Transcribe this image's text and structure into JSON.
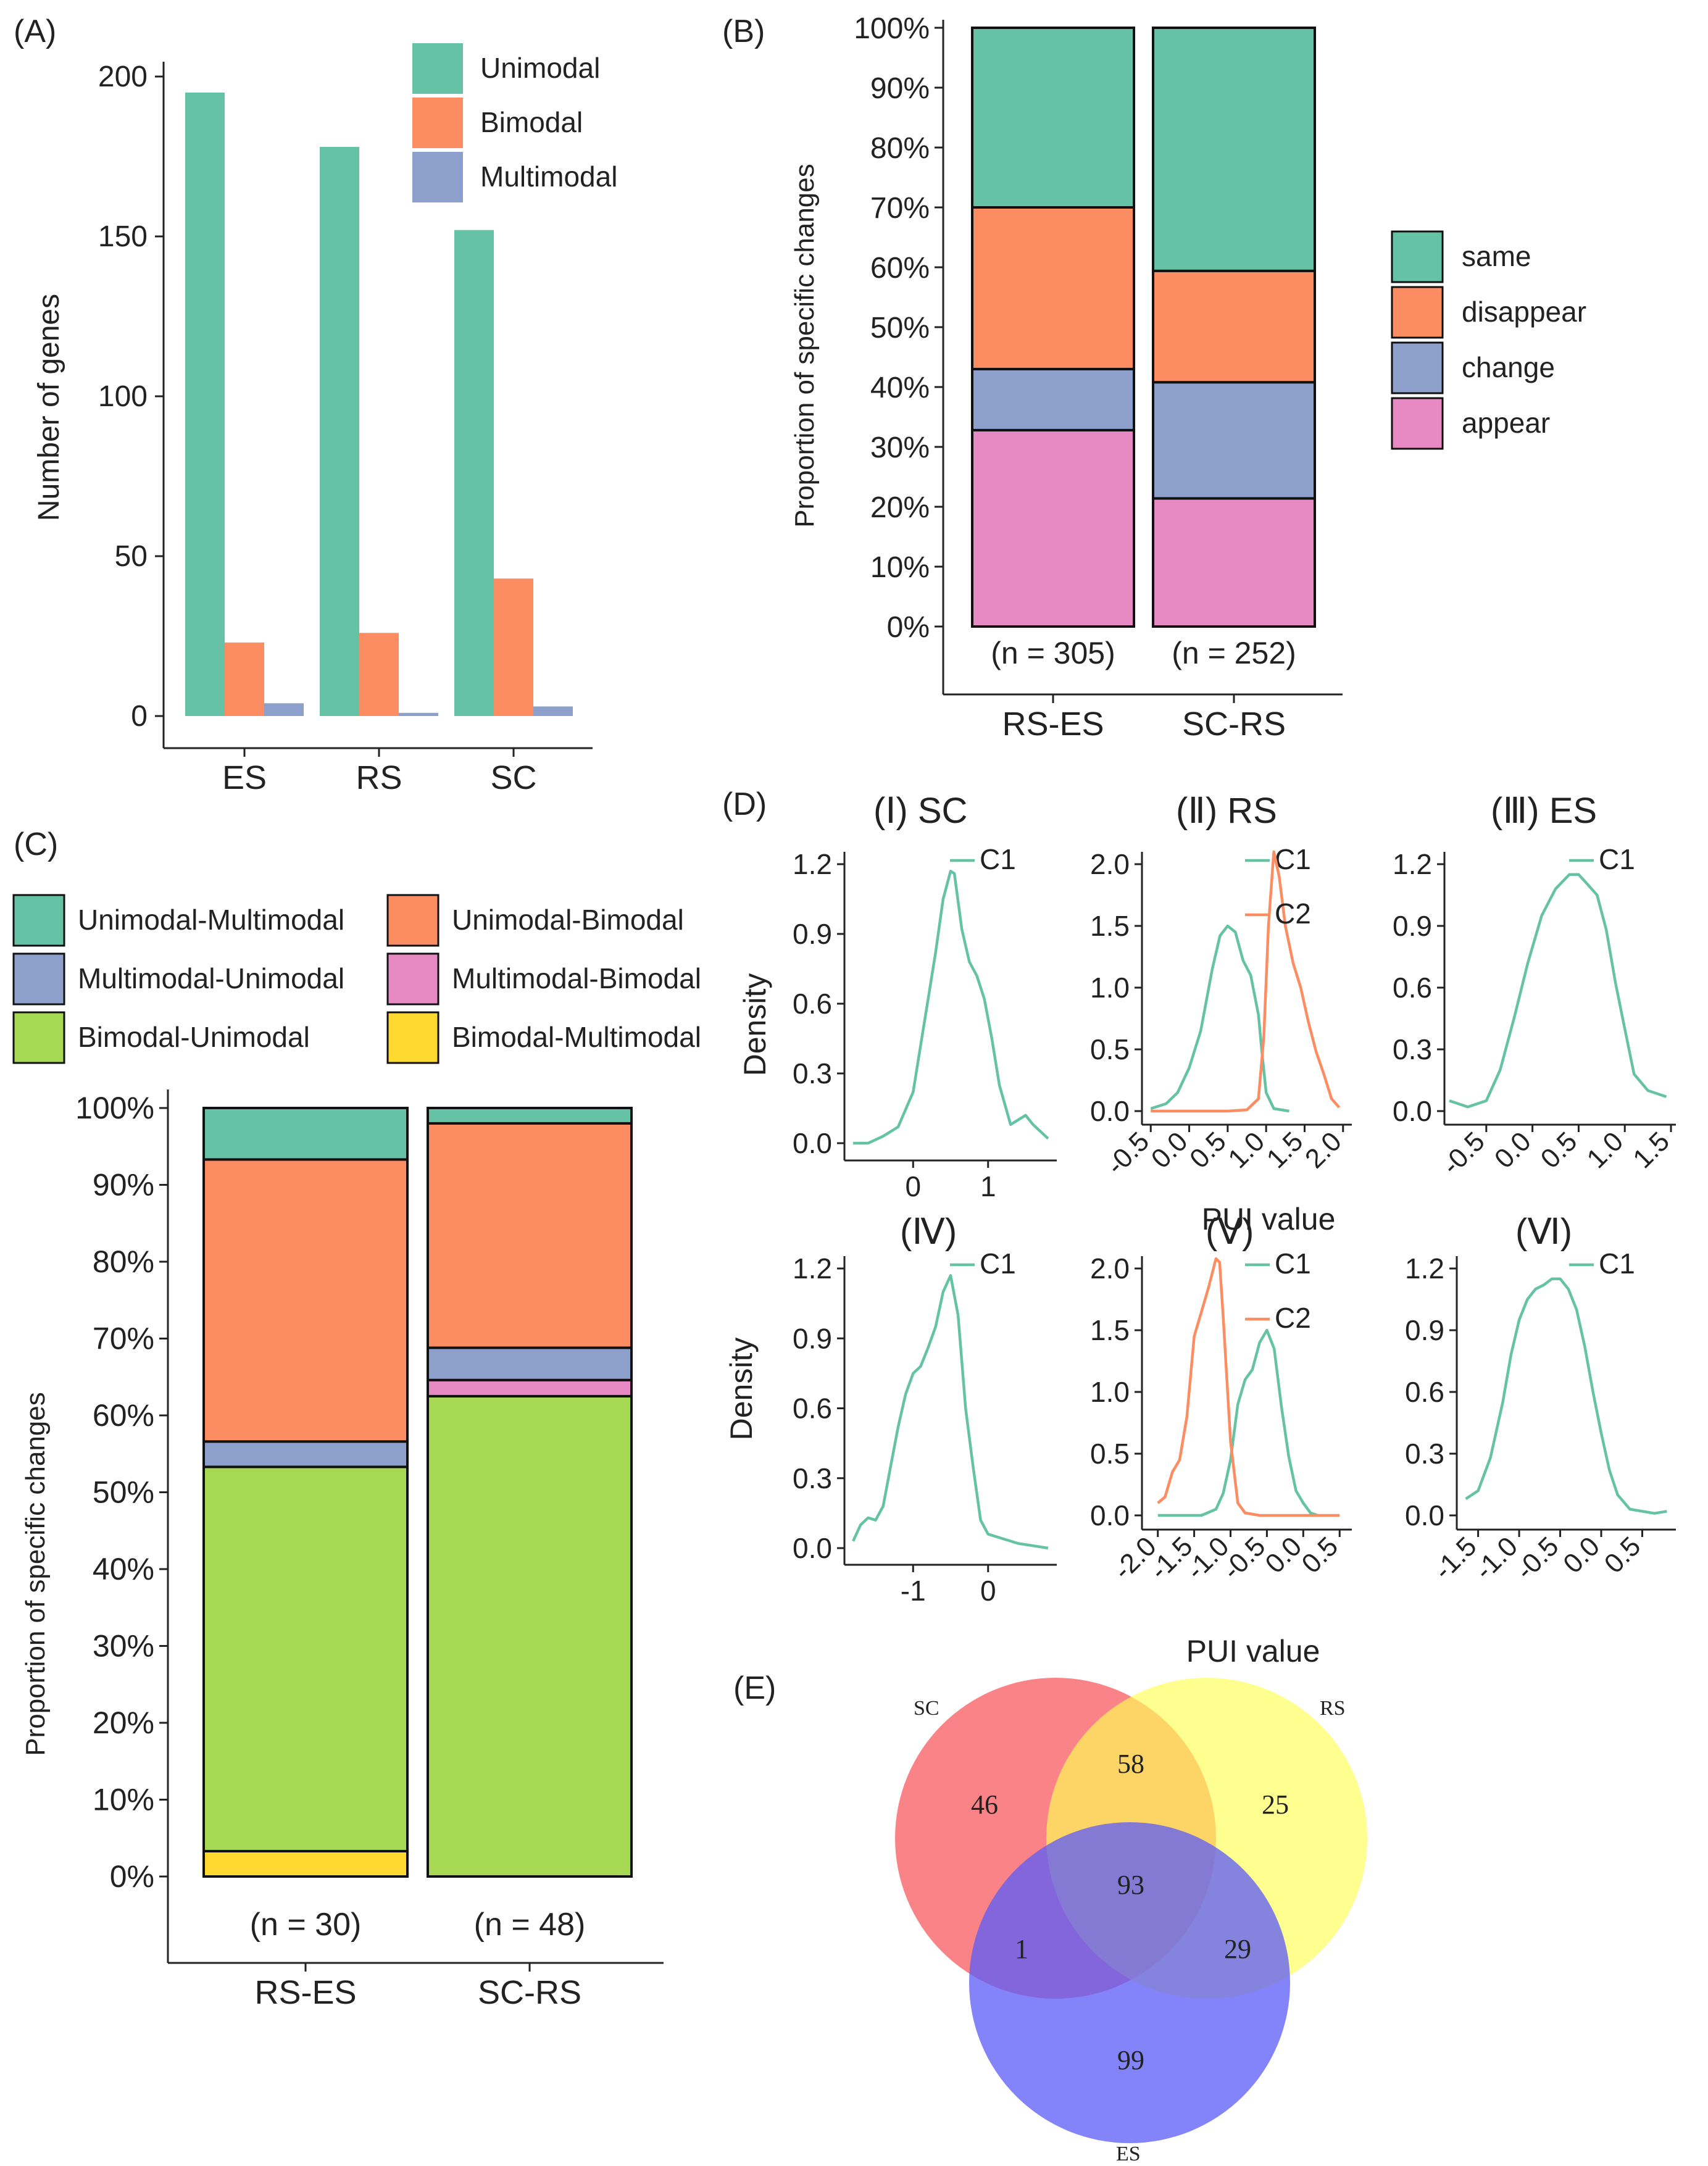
{
  "colors": {
    "teal": "#66C2A5",
    "orange": "#FC8D62",
    "blue": "#8DA0CB",
    "pink": "#E78AC3",
    "green": "#A6D854",
    "yellow": "#FFD92F",
    "venn_sc": "#F8595F",
    "venn_rs": "#FFFF55",
    "venn_es": "#5B5BF8"
  },
  "chart_data": [
    {
      "id": "A",
      "panel_label": "(A)",
      "type": "bar",
      "title": "",
      "xlabel": "",
      "ylabel": "Number of genes",
      "categories": [
        "ES",
        "RS",
        "SC"
      ],
      "series": [
        {
          "name": "Unimodal",
          "values": [
            195,
            178,
            152
          ]
        },
        {
          "name": "Bimodal",
          "values": [
            23,
            26,
            43
          ]
        },
        {
          "name": "Multimodal",
          "values": [
            4,
            1,
            3
          ]
        }
      ],
      "ylim": [
        0,
        210
      ],
      "yticks": [
        "0",
        "50",
        "100",
        "150",
        "200"
      ],
      "legend": "top-right",
      "grid": false
    },
    {
      "id": "B",
      "panel_label": "(B)",
      "type": "bar",
      "stacked": true,
      "xlabel": "",
      "ylabel": "Proportion of specific changes",
      "categories": [
        "RS-ES",
        "SC-RS"
      ],
      "n_labels": [
        "(n = 305)",
        "(n = 252)"
      ],
      "series": [
        {
          "name": "appear",
          "values": [
            32.8,
            21.4
          ]
        },
        {
          "name": "change",
          "values": [
            10.2,
            19.4
          ]
        },
        {
          "name": "disappear",
          "values": [
            27.0,
            18.6
          ]
        },
        {
          "name": "same",
          "values": [
            30.0,
            40.6
          ]
        }
      ],
      "legend_entries": [
        "same",
        "disappear",
        "change",
        "appear"
      ],
      "ylim": [
        0,
        100
      ],
      "yticks": [
        "0%",
        "10%",
        "20%",
        "30%",
        "40%",
        "50%",
        "60%",
        "70%",
        "80%",
        "90%",
        "100%"
      ],
      "legend": "right"
    },
    {
      "id": "C",
      "panel_label": "(C)",
      "type": "bar",
      "stacked": true,
      "xlabel": "",
      "ylabel": "Proportion of specific changes",
      "categories": [
        "RS-ES",
        "SC-RS"
      ],
      "n_labels": [
        "(n = 30)",
        "(n = 48)"
      ],
      "series": [
        {
          "name": "Bimodal-Multimodal",
          "values": [
            3.3,
            0
          ]
        },
        {
          "name": "Bimodal-Unimodal",
          "values": [
            50.0,
            62.5
          ]
        },
        {
          "name": "Multimodal-Bimodal",
          "values": [
            0,
            2.1
          ]
        },
        {
          "name": "Multimodal-Unimodal",
          "values": [
            3.3,
            4.2
          ]
        },
        {
          "name": "Unimodal-Bimodal",
          "values": [
            36.7,
            29.2
          ]
        },
        {
          "name": "Unimodal-Multimodal",
          "values": [
            6.7,
            2.0
          ]
        }
      ],
      "legend_entries": [
        "Unimodal-Multimodal",
        "Unimodal-Bimodal",
        "Multimodal-Unimodal",
        "Multimodal-Bimodal",
        "Bimodal-Unimodal",
        "Bimodal-Multimodal"
      ],
      "ylim": [
        0,
        100
      ],
      "yticks": [
        "0%",
        "10%",
        "20%",
        "30%",
        "40%",
        "50%",
        "60%",
        "70%",
        "80%",
        "90%",
        "100%"
      ],
      "legend": "top"
    },
    {
      "id": "D",
      "panel_label": "(D)",
      "type": "line",
      "subtype": "density",
      "ylabel": "Density",
      "xlabel": "PUI value",
      "subplots": [
        {
          "title": "(Ⅰ) SC",
          "xlim": [
            -0.85,
            1.85
          ],
          "ylim": [
            -0.04,
            1.25
          ],
          "xticks": [
            {
              "v": 0,
              "l": "0"
            },
            {
              "v": 1,
              "l": "1"
            }
          ],
          "yticks": [
            {
              "v": 0,
              "l": "0.0"
            },
            {
              "v": 0.3,
              "l": "0.3"
            },
            {
              "v": 0.6,
              "l": "0.6"
            },
            {
              "v": 0.9,
              "l": "0.9"
            },
            {
              "v": 1.2,
              "l": "1.2"
            }
          ],
          "rotate_ticks": false,
          "series": [
            {
              "name": "C1",
              "color": "#66C2A5",
              "x": [
                -0.8,
                -0.6,
                -0.4,
                -0.2,
                0.0,
                0.1,
                0.2,
                0.3,
                0.4,
                0.5,
                0.55,
                0.65,
                0.75,
                0.85,
                0.95,
                1.05,
                1.15,
                1.3,
                1.5,
                1.6,
                1.8
              ],
              "y": [
                0.0,
                0.0,
                0.03,
                0.07,
                0.22,
                0.42,
                0.62,
                0.82,
                1.05,
                1.17,
                1.16,
                0.92,
                0.78,
                0.72,
                0.62,
                0.45,
                0.25,
                0.08,
                0.12,
                0.08,
                0.02
              ]
            }
          ]
        },
        {
          "title": "(Ⅱ) RS",
          "xlim": [
            -0.55,
            2.05
          ],
          "ylim": [
            -0.06,
            2.2
          ],
          "xticks": [
            {
              "v": -0.5,
              "l": "-0.5"
            },
            {
              "v": 0,
              "l": "0.0"
            },
            {
              "v": 0.5,
              "l": "0.5"
            },
            {
              "v": 1.0,
              "l": "1.0"
            },
            {
              "v": 1.5,
              "l": "1.5"
            },
            {
              "v": 2.0,
              "l": "2.0"
            }
          ],
          "yticks": [
            {
              "v": 0,
              "l": "0.0"
            },
            {
              "v": 0.5,
              "l": "0.5"
            },
            {
              "v": 1.0,
              "l": "1.0"
            },
            {
              "v": 1.5,
              "l": "1.5"
            },
            {
              "v": 2.0,
              "l": "2.0"
            }
          ],
          "rotate_ticks": true,
          "series": [
            {
              "name": "C1",
              "color": "#66C2A5",
              "x": [
                -0.5,
                -0.3,
                -0.15,
                0.0,
                0.15,
                0.3,
                0.4,
                0.5,
                0.6,
                0.7,
                0.8,
                0.9,
                0.95,
                1.0,
                1.1,
                1.3
              ],
              "y": [
                0.02,
                0.06,
                0.15,
                0.35,
                0.65,
                1.15,
                1.42,
                1.5,
                1.45,
                1.22,
                1.1,
                0.78,
                0.45,
                0.15,
                0.02,
                0.0
              ]
            },
            {
              "name": "C2",
              "color": "#FC8D62",
              "x": [
                -0.5,
                0.0,
                0.5,
                0.75,
                0.9,
                0.97,
                1.03,
                1.1,
                1.17,
                1.25,
                1.35,
                1.45,
                1.55,
                1.65,
                1.75,
                1.85,
                1.95
              ],
              "y": [
                0.0,
                0.0,
                0.0,
                0.01,
                0.1,
                0.6,
                1.5,
                2.1,
                1.9,
                1.5,
                1.2,
                1.0,
                0.72,
                0.48,
                0.3,
                0.1,
                0.03
              ]
            }
          ]
        },
        {
          "title": "(Ⅲ) ES",
          "xlim": [
            -0.9,
            1.5
          ],
          "ylim": [
            -0.04,
            1.25
          ],
          "xticks": [
            {
              "v": -0.5,
              "l": "-0.5"
            },
            {
              "v": 0,
              "l": "0.0"
            },
            {
              "v": 0.5,
              "l": "0.5"
            },
            {
              "v": 1.0,
              "l": "1.0"
            },
            {
              "v": 1.5,
              "l": "1.5"
            }
          ],
          "yticks": [
            {
              "v": 0,
              "l": "0.0"
            },
            {
              "v": 0.3,
              "l": "0.3"
            },
            {
              "v": 0.6,
              "l": "0.6"
            },
            {
              "v": 0.9,
              "l": "0.9"
            },
            {
              "v": 1.2,
              "l": "1.2"
            }
          ],
          "rotate_ticks": true,
          "series": [
            {
              "name": "C1",
              "color": "#66C2A5",
              "x": [
                -0.9,
                -0.7,
                -0.5,
                -0.35,
                -0.2,
                -0.05,
                0.1,
                0.25,
                0.4,
                0.5,
                0.6,
                0.7,
                0.8,
                0.9,
                1.0,
                1.1,
                1.25,
                1.45
              ],
              "y": [
                0.05,
                0.02,
                0.05,
                0.2,
                0.45,
                0.72,
                0.95,
                1.08,
                1.15,
                1.15,
                1.1,
                1.05,
                0.88,
                0.62,
                0.4,
                0.18,
                0.1,
                0.07
              ]
            }
          ]
        },
        {
          "title": "(Ⅳ)",
          "xlim": [
            -1.85,
            0.85
          ],
          "ylim": [
            -0.04,
            1.25
          ],
          "xticks": [
            {
              "v": -1,
              "l": "-1"
            },
            {
              "v": 0,
              "l": "0"
            }
          ],
          "yticks": [
            {
              "v": 0,
              "l": "0.0"
            },
            {
              "v": 0.3,
              "l": "0.3"
            },
            {
              "v": 0.6,
              "l": "0.6"
            },
            {
              "v": 0.9,
              "l": "0.9"
            },
            {
              "v": 1.2,
              "l": "1.2"
            }
          ],
          "rotate_ticks": false,
          "series": [
            {
              "name": "C1",
              "color": "#66C2A5",
              "x": [
                -1.8,
                -1.7,
                -1.6,
                -1.5,
                -1.4,
                -1.3,
                -1.2,
                -1.1,
                -1.0,
                -0.9,
                -0.8,
                -0.7,
                -0.6,
                -0.5,
                -0.4,
                -0.3,
                -0.2,
                -0.1,
                0.0,
                0.2,
                0.4,
                0.6,
                0.8
              ],
              "y": [
                0.03,
                0.1,
                0.13,
                0.12,
                0.18,
                0.35,
                0.52,
                0.66,
                0.75,
                0.78,
                0.86,
                0.95,
                1.1,
                1.17,
                1.0,
                0.6,
                0.35,
                0.12,
                0.06,
                0.04,
                0.02,
                0.01,
                0.0
              ]
            }
          ]
        },
        {
          "title": "(Ⅴ)",
          "xlim": [
            -2.15,
            0.6
          ],
          "ylim": [
            -0.06,
            2.2
          ],
          "xticks": [
            {
              "v": -2.0,
              "l": "-2.0"
            },
            {
              "v": -1.5,
              "l": "-1.5"
            },
            {
              "v": -1.0,
              "l": "-1.0"
            },
            {
              "v": -0.5,
              "l": "-0.5"
            },
            {
              "v": 0.0,
              "l": "0.0"
            },
            {
              "v": 0.5,
              "l": "0.5"
            }
          ],
          "yticks": [
            {
              "v": 0,
              "l": "0.0"
            },
            {
              "v": 0.5,
              "l": "0.5"
            },
            {
              "v": 1.0,
              "l": "1.0"
            },
            {
              "v": 1.5,
              "l": "1.5"
            },
            {
              "v": 2.0,
              "l": "2.0"
            }
          ],
          "rotate_ticks": true,
          "series": [
            {
              "name": "C1",
              "color": "#66C2A5",
              "x": [
                -2.0,
                -1.4,
                -1.2,
                -1.1,
                -1.0,
                -0.9,
                -0.8,
                -0.7,
                -0.6,
                -0.5,
                -0.4,
                -0.3,
                -0.2,
                -0.1,
                0.0,
                0.1,
                0.2
              ],
              "y": [
                0.0,
                0.0,
                0.05,
                0.18,
                0.45,
                0.9,
                1.1,
                1.18,
                1.4,
                1.5,
                1.35,
                0.88,
                0.48,
                0.2,
                0.1,
                0.02,
                0.0
              ]
            },
            {
              "name": "C2",
              "color": "#FC8D62",
              "x": [
                -2.0,
                -1.9,
                -1.8,
                -1.7,
                -1.6,
                -1.5,
                -1.4,
                -1.3,
                -1.2,
                -1.15,
                -1.1,
                -1.0,
                -0.9,
                -0.8,
                -0.6,
                0.0,
                0.5
              ],
              "y": [
                0.1,
                0.15,
                0.35,
                0.45,
                0.8,
                1.45,
                1.65,
                1.85,
                2.08,
                2.05,
                1.6,
                0.6,
                0.1,
                0.02,
                0.0,
                0.0,
                0.0
              ]
            }
          ]
        },
        {
          "title": "(Ⅵ)",
          "xlim": [
            -1.7,
            0.85
          ],
          "ylim": [
            -0.04,
            1.25
          ],
          "xticks": [
            {
              "v": -1.5,
              "l": "-1.5"
            },
            {
              "v": -1.0,
              "l": "-1.0"
            },
            {
              "v": -0.5,
              "l": "-0.5"
            },
            {
              "v": 0.0,
              "l": "0.0"
            },
            {
              "v": 0.5,
              "l": "0.5"
            }
          ],
          "yticks": [
            {
              "v": 0,
              "l": "0.0"
            },
            {
              "v": 0.3,
              "l": "0.3"
            },
            {
              "v": 0.6,
              "l": "0.6"
            },
            {
              "v": 0.9,
              "l": "0.9"
            },
            {
              "v": 1.2,
              "l": "1.2"
            }
          ],
          "rotate_ticks": true,
          "series": [
            {
              "name": "C1",
              "color": "#66C2A5",
              "x": [
                -1.65,
                -1.5,
                -1.35,
                -1.2,
                -1.1,
                -1.0,
                -0.9,
                -0.8,
                -0.7,
                -0.6,
                -0.5,
                -0.4,
                -0.3,
                -0.2,
                -0.1,
                0.0,
                0.1,
                0.2,
                0.35,
                0.5,
                0.65,
                0.8
              ],
              "y": [
                0.08,
                0.12,
                0.28,
                0.55,
                0.78,
                0.95,
                1.05,
                1.1,
                1.12,
                1.15,
                1.15,
                1.1,
                1.0,
                0.82,
                0.6,
                0.4,
                0.22,
                0.1,
                0.03,
                0.02,
                0.01,
                0.02
              ]
            }
          ]
        }
      ]
    }
  ],
  "venn": {
    "panel_label": "(E)",
    "labels": {
      "sc": "SC",
      "rs": "RS",
      "es": "ES"
    },
    "regions": {
      "sc_only": "46",
      "sc_rs": "58",
      "rs_only": "25",
      "all": "93",
      "sc_es": "1",
      "rs_es": "29",
      "es_only": "99"
    }
  }
}
